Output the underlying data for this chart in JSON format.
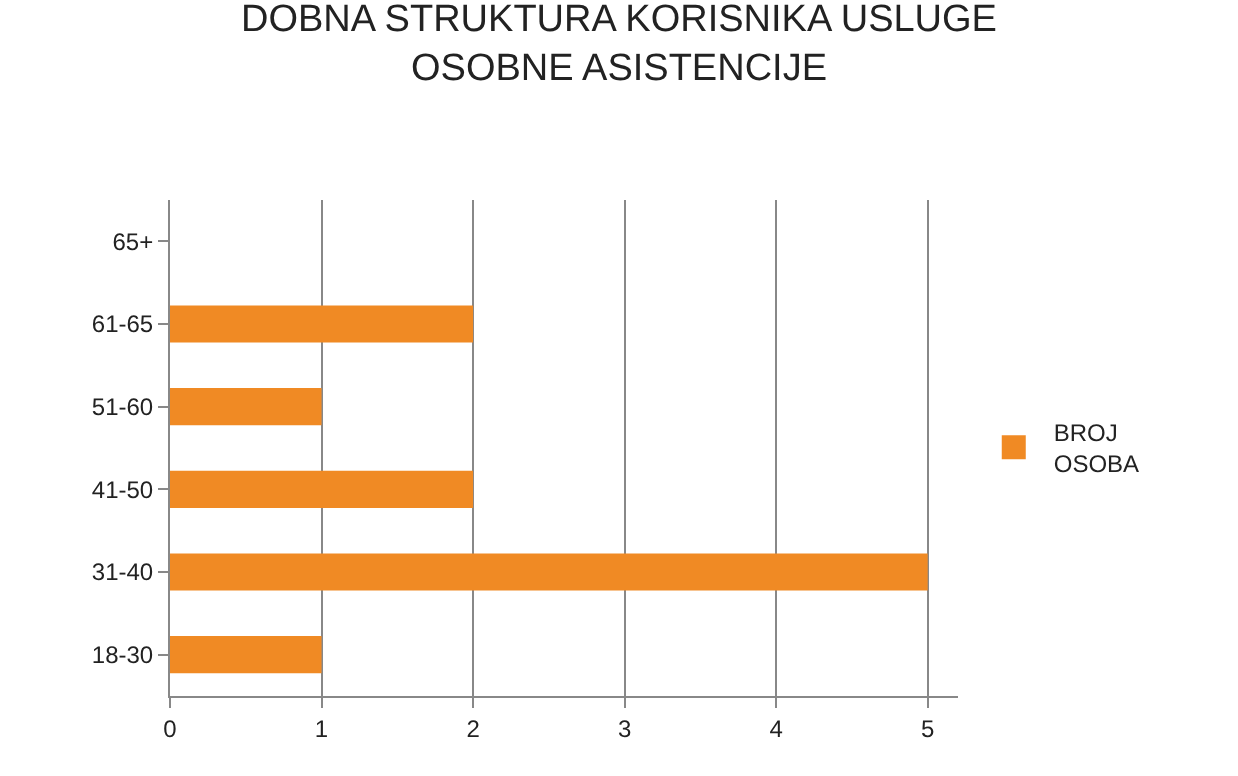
{
  "chart_data": {
    "type": "bar",
    "orientation": "horizontal",
    "title": "DOBNA STRUKTURA KORISNIKA USLUGE\nOSOBNE ASISTENCIJE",
    "categories": [
      "65+",
      "61-65",
      "51-60",
      "41-50",
      "31-40",
      "18-30"
    ],
    "series": [
      {
        "name": "BROJ OSOBA",
        "color": "#f08a24",
        "values": [
          0,
          2,
          1,
          2,
          5,
          1
        ]
      }
    ],
    "xlim": [
      0,
      5.2
    ],
    "xticks": [
      0,
      1,
      2,
      3,
      4,
      5
    ],
    "grid": "x",
    "legend": "right"
  }
}
